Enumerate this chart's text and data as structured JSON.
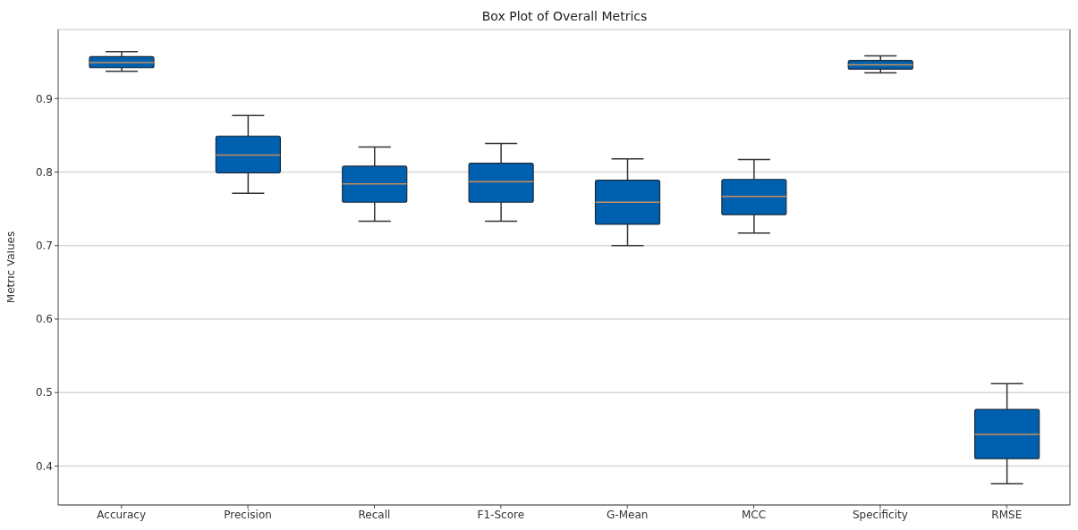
{
  "chart_data": {
    "type": "box",
    "title": "Box Plot of Overall Metrics",
    "ylabel": "Metric Values",
    "categories": [
      "Accuracy",
      "Precision",
      "Recall",
      "F1-Score",
      "G-Mean",
      "MCC",
      "Specificity",
      "RMSE"
    ],
    "boxes": [
      {
        "low": 0.937,
        "q1": 0.942,
        "median": 0.949,
        "q3": 0.957,
        "high": 0.964
      },
      {
        "low": 0.771,
        "q1": 0.799,
        "median": 0.823,
        "q3": 0.849,
        "high": 0.877
      },
      {
        "low": 0.733,
        "q1": 0.759,
        "median": 0.784,
        "q3": 0.808,
        "high": 0.834
      },
      {
        "low": 0.733,
        "q1": 0.759,
        "median": 0.787,
        "q3": 0.812,
        "high": 0.839
      },
      {
        "low": 0.7,
        "q1": 0.729,
        "median": 0.759,
        "q3": 0.789,
        "high": 0.818
      },
      {
        "low": 0.717,
        "q1": 0.742,
        "median": 0.767,
        "q3": 0.79,
        "high": 0.817
      },
      {
        "low": 0.935,
        "q1": 0.94,
        "median": 0.946,
        "q3": 0.952,
        "high": 0.958
      },
      {
        "low": 0.376,
        "q1": 0.41,
        "median": 0.443,
        "q3": 0.477,
        "high": 0.512
      }
    ],
    "color": "#0060b0",
    "ylim": [
      0.347,
      0.994
    ],
    "yticks": [
      0.4,
      0.5,
      0.6,
      0.7,
      0.8,
      0.9
    ],
    "grid": "y"
  }
}
